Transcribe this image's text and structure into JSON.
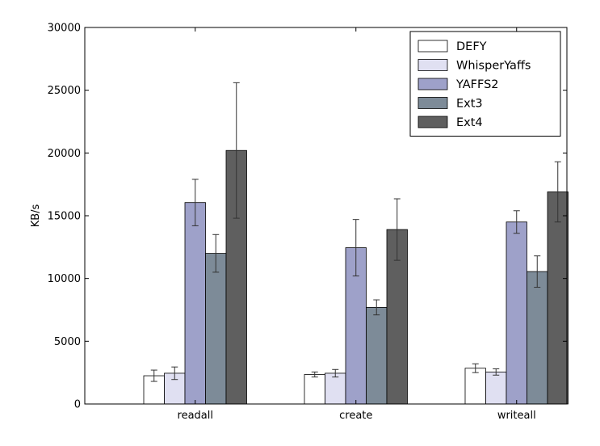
{
  "chart_data": {
    "type": "bar",
    "title": "",
    "xlabel": "",
    "ylabel": "KB/s",
    "ylim": [
      0,
      30000
    ],
    "yticks": [
      0,
      5000,
      10000,
      15000,
      20000,
      25000,
      30000
    ],
    "grid": false,
    "legend_position": "top-right",
    "categories": [
      "readall",
      "create",
      "writeall"
    ],
    "series": [
      {
        "name": "DEFY",
        "color": "#ffffff",
        "values": [
          2250,
          2350,
          2850
        ],
        "errors": [
          450,
          200,
          350
        ]
      },
      {
        "name": "WhisperYaffs",
        "color": "#e0e0f2",
        "values": [
          2450,
          2450,
          2550
        ],
        "errors": [
          500,
          300,
          250
        ]
      },
      {
        "name": "YAFFS2",
        "color": "#9ea1c9",
        "values": [
          16050,
          12450,
          14500
        ],
        "errors": [
          1850,
          2250,
          900
        ]
      },
      {
        "name": "Ext3",
        "color": "#7d8b98",
        "values": [
          12000,
          7700,
          10550
        ],
        "errors": [
          1500,
          600,
          1250
        ]
      },
      {
        "name": "Ext4",
        "color": "#5f5f5f",
        "values": [
          20200,
          13900,
          16900
        ],
        "errors": [
          5400,
          2450,
          2400
        ]
      }
    ]
  }
}
